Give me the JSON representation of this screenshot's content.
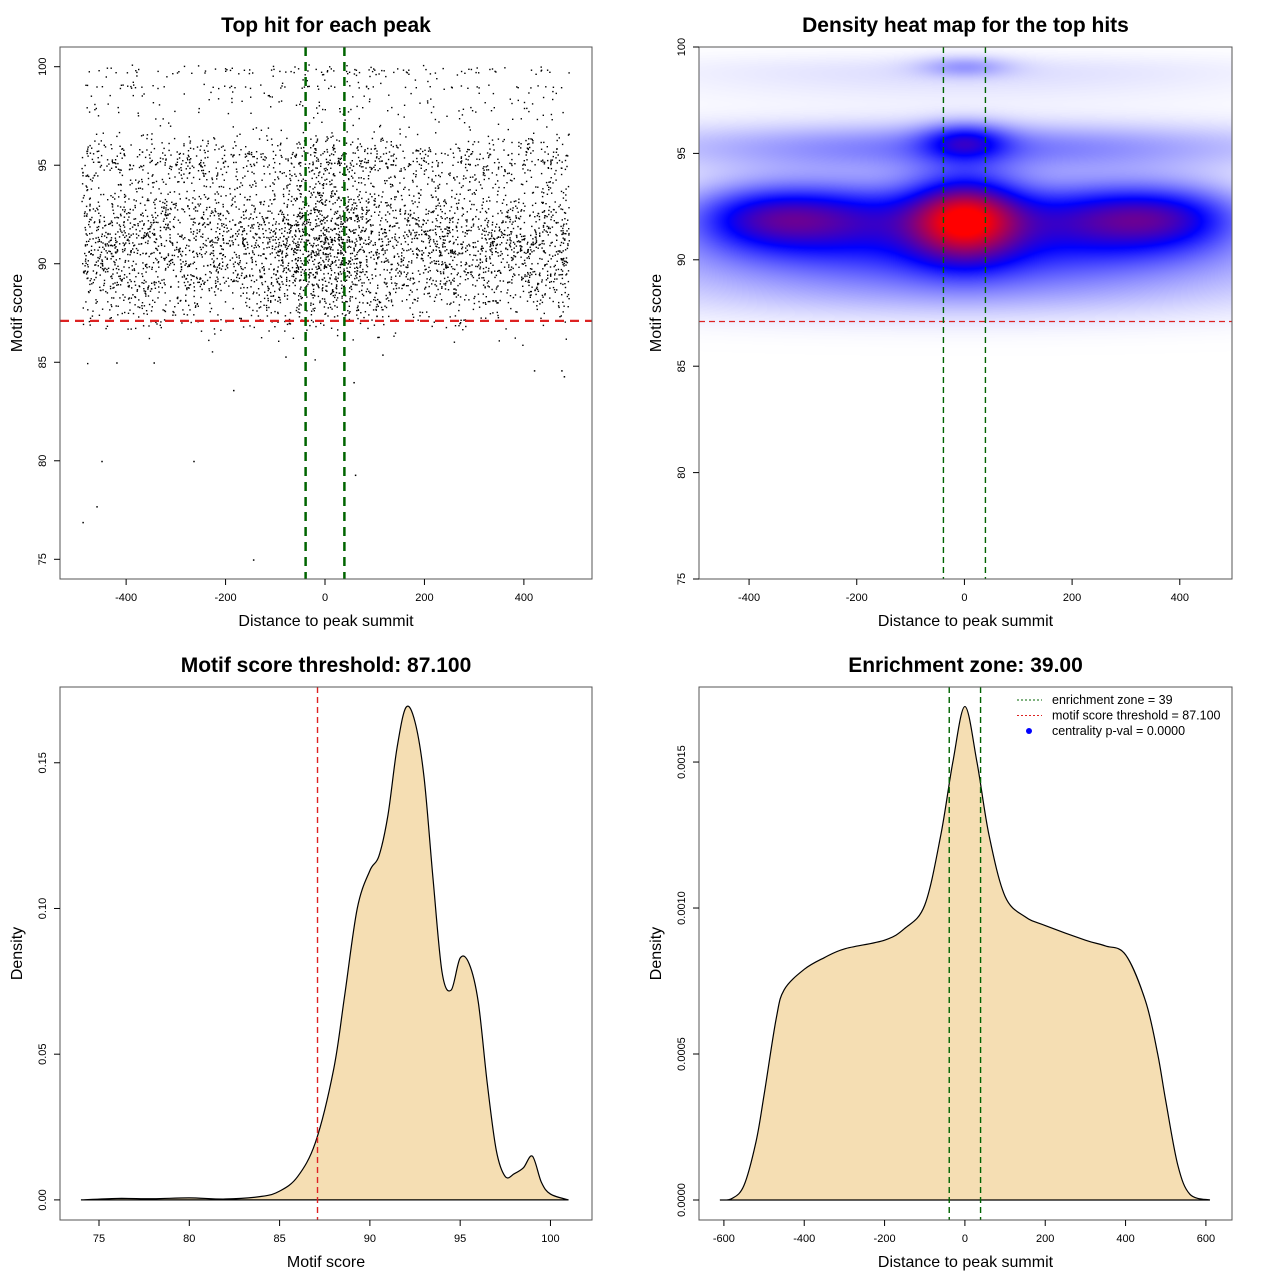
{
  "chart_data": [
    {
      "type": "scatter",
      "title": "Top hit for each peak",
      "xlabel": "Distance to peak summit",
      "ylabel": "Motif score",
      "xlim": [
        -533,
        537
      ],
      "ylim": [
        74,
        101
      ],
      "xticks": [
        -400,
        -200,
        0,
        200,
        400
      ],
      "yticks": [
        75,
        80,
        85,
        90,
        95,
        100
      ],
      "grid": false,
      "point_color": "#000000",
      "cloud": {
        "count": 5200,
        "x_range": [
          -490,
          490
        ],
        "score_levels": [
          {
            "y": 92.0,
            "sd": 1.3,
            "weight": 0.42
          },
          {
            "y": 90.0,
            "sd": 1.2,
            "weight": 0.25
          },
          {
            "y": 95.3,
            "sd": 0.7,
            "weight": 0.17
          },
          {
            "y": 88.3,
            "sd": 0.9,
            "weight": 0.1
          },
          {
            "y": 98.2,
            "sd": 0.7,
            "weight": 0.03
          },
          {
            "y": 99.8,
            "sd": 0.15,
            "weight": 0.02
          },
          {
            "y": 99.0,
            "sd": 0.05,
            "weight": 0.01
          }
        ]
      },
      "outliers": [
        {
          "x": -488,
          "y": 76.9
        },
        {
          "x": -460,
          "y": 77.7
        },
        {
          "x": -450,
          "y": 80.0
        },
        {
          "x": -265,
          "y": 80.0
        },
        {
          "x": -185,
          "y": 83.6
        },
        {
          "x": -145,
          "y": 75.0
        },
        {
          "x": 60,
          "y": 79.3
        },
        {
          "x": 57,
          "y": 84.0
        },
        {
          "x": -420,
          "y": 85.0
        },
        {
          "x": -345,
          "y": 85.0
        },
        {
          "x": 420,
          "y": 84.6
        },
        {
          "x": 480,
          "y": 84.3
        },
        {
          "x": 475,
          "y": 84.6
        },
        {
          "x": -80,
          "y": 85.3
        },
        {
          "x": 115,
          "y": 85.4
        }
      ],
      "hlines": [
        {
          "y": 87.1,
          "color": "#dd2222",
          "style": "dashed"
        }
      ],
      "vlines": [
        {
          "x": -39,
          "color": "#006400",
          "style": "dashed"
        },
        {
          "x": 39,
          "color": "#006400",
          "style": "dashed"
        }
      ]
    },
    {
      "type": "heatmap",
      "title": "Density heat map for the top hits",
      "xlabel": "Distance to peak summit",
      "ylabel": "Motif score",
      "xlim": [
        -493,
        497
      ],
      "ylim": [
        75,
        100
      ],
      "xticks": [
        -400,
        -200,
        0,
        200,
        400
      ],
      "yticks": [
        75,
        80,
        85,
        90,
        95,
        100
      ],
      "colors": [
        "#ffffff",
        "#0000ff",
        "#ff0000"
      ],
      "density_components": [
        {
          "x": -380,
          "y": 92.0,
          "sx": 110,
          "sy": 1.1,
          "w": 0.45
        },
        {
          "x": -200,
          "y": 92.0,
          "sx": 130,
          "sy": 1.2,
          "w": 0.42
        },
        {
          "x": 200,
          "y": 92.0,
          "sx": 130,
          "sy": 1.2,
          "w": 0.42
        },
        {
          "x": 380,
          "y": 92.0,
          "sx": 110,
          "sy": 1.1,
          "w": 0.45
        },
        {
          "x": 0,
          "y": 92.0,
          "sx": 75,
          "sy": 1.4,
          "w": 0.75
        },
        {
          "x": 0,
          "y": 90.0,
          "sx": 420,
          "sy": 1.1,
          "w": 0.28
        },
        {
          "x": 0,
          "y": 95.3,
          "sx": 420,
          "sy": 0.8,
          "w": 0.26
        },
        {
          "x": 0,
          "y": 95.6,
          "sx": 55,
          "sy": 0.6,
          "w": 0.32
        },
        {
          "x": 0,
          "y": 88.3,
          "sx": 400,
          "sy": 0.9,
          "w": 0.1
        },
        {
          "x": 0,
          "y": 98.2,
          "sx": 400,
          "sy": 0.7,
          "w": 0.04
        },
        {
          "x": 0,
          "y": 99.0,
          "sx": 400,
          "sy": 0.5,
          "w": 0.04
        },
        {
          "x": 0,
          "y": 99.1,
          "sx": 60,
          "sy": 0.35,
          "w": 0.15
        }
      ],
      "hlines": [
        {
          "y": 87.1,
          "color": "#dd2222",
          "style": "dashed"
        }
      ],
      "vlines": [
        {
          "x": -39,
          "color": "#006400",
          "style": "dashed"
        },
        {
          "x": 39,
          "color": "#006400",
          "style": "dashed"
        }
      ]
    },
    {
      "type": "area",
      "title": "Motif score threshold: 87.100",
      "xlabel": "Motif score",
      "ylabel": "Density",
      "xlim": [
        72.84,
        102.3
      ],
      "ylim": [
        -0.0069,
        0.176
      ],
      "xticks": [
        75,
        80,
        85,
        90,
        95,
        100
      ],
      "yticks": [
        0.0,
        0.05,
        0.1,
        0.15
      ],
      "ytick_labels": [
        "0.00",
        "0.05",
        "0.10",
        "0.15"
      ],
      "fill": "#f5deb3",
      "x": [
        74,
        76,
        78,
        80,
        82,
        84,
        85,
        86,
        87,
        88,
        88.6,
        89.3,
        90,
        90.5,
        91,
        91.5,
        92,
        92.5,
        93,
        93.5,
        94,
        94.5,
        95,
        95.5,
        96,
        96.5,
        97,
        97.5,
        98,
        98.5,
        99,
        99.5,
        100,
        101
      ],
      "y": [
        0,
        0.0005,
        0.0004,
        0.0007,
        0.0003,
        0.0012,
        0.003,
        0.008,
        0.02,
        0.045,
        0.07,
        0.1,
        0.113,
        0.118,
        0.132,
        0.155,
        0.169,
        0.164,
        0.145,
        0.11,
        0.078,
        0.072,
        0.083,
        0.081,
        0.068,
        0.04,
        0.017,
        0.008,
        0.009,
        0.011,
        0.015,
        0.006,
        0.002,
        0
      ],
      "vlines": [
        {
          "x": 87.1,
          "color": "#dd2222",
          "style": "dashed"
        }
      ]
    },
    {
      "type": "area",
      "title": "Enrichment zone: 39.00",
      "xlabel": "Distance to peak summit",
      "ylabel": "Density",
      "xlim": [
        -662,
        665
      ],
      "ylim": [
        -6.85e-05,
        0.001757
      ],
      "xticks": [
        -600,
        -400,
        -200,
        0,
        200,
        400,
        600
      ],
      "yticks": [
        0,
        0.0005,
        0.001,
        0.0015
      ],
      "ytick_labels": [
        "0.0000",
        "0.0005",
        "0.0010",
        "0.0015"
      ],
      "fill": "#f5deb3",
      "x": [
        -610,
        -580,
        -550,
        -520,
        -500,
        -470,
        -450,
        -400,
        -350,
        -300,
        -200,
        -150,
        -100,
        -60,
        -30,
        0,
        30,
        60,
        100,
        150,
        200,
        300,
        350,
        400,
        450,
        480,
        500,
        530,
        560,
        610
      ],
      "y": [
        0,
        5e-06,
        5e-05,
        0.0002,
        0.00036,
        0.00062,
        0.00072,
        0.00079,
        0.00083,
        0.00086,
        0.00089,
        0.00093,
        0.00101,
        0.00125,
        0.0015,
        0.00169,
        0.0015,
        0.00125,
        0.00104,
        0.00097,
        0.00094,
        0.00089,
        0.00087,
        0.00084,
        0.00068,
        0.0005,
        0.00034,
        0.00012,
        2e-05,
        0
      ],
      "vlines": [
        {
          "x": -39,
          "color": "#006400",
          "style": "dashed"
        },
        {
          "x": 39,
          "color": "#006400",
          "style": "dashed"
        }
      ],
      "legend": {
        "position": "top-right",
        "entries": [
          {
            "label": "enrichment zone = 39",
            "color": "#006400",
            "symbol": "dotted-line"
          },
          {
            "label": "motif score threshold = 87.100",
            "color": "#dd2222",
            "symbol": "dotted-line"
          },
          {
            "label": "centrality p-val = 0.0000",
            "color": "#0000ff",
            "symbol": "dot"
          }
        ]
      }
    }
  ]
}
